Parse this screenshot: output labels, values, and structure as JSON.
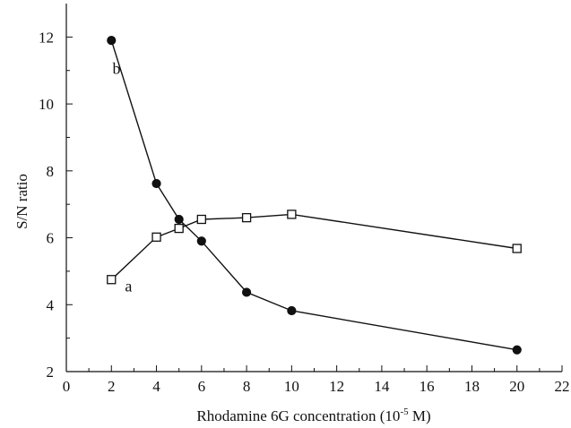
{
  "chart_data": {
    "type": "line",
    "title": "",
    "xlabel": "Rhodamine 6G concentration (10",
    "xlabel_exponent": "-5",
    "xlabel_unit": " M)",
    "ylabel": "S/N ratio",
    "xlim": [
      0,
      22
    ],
    "ylim": [
      2,
      13
    ],
    "xticks": [
      0,
      2,
      4,
      6,
      8,
      10,
      12,
      14,
      16,
      18,
      20,
      22
    ],
    "yticks": [
      2,
      4,
      6,
      8,
      10,
      12
    ],
    "grid": false,
    "series": [
      {
        "name": "a",
        "marker": "open-square",
        "x": [
          2,
          4,
          5,
          6,
          8,
          10,
          20
        ],
        "y": [
          4.75,
          6.02,
          6.28,
          6.55,
          6.6,
          6.7,
          5.68
        ],
        "label_x": 2.6,
        "label_y": 4.4
      },
      {
        "name": "b",
        "marker": "filled-circle",
        "x": [
          2,
          4,
          5,
          6,
          8,
          10,
          20
        ],
        "y": [
          11.9,
          7.62,
          6.55,
          5.9,
          4.37,
          3.82,
          2.65
        ],
        "label_x": 2.05,
        "label_y": 10.9
      }
    ],
    "colors": {
      "line": "#111111",
      "marker_fill": "#111111",
      "open_marker_fill": "#ffffff"
    }
  }
}
